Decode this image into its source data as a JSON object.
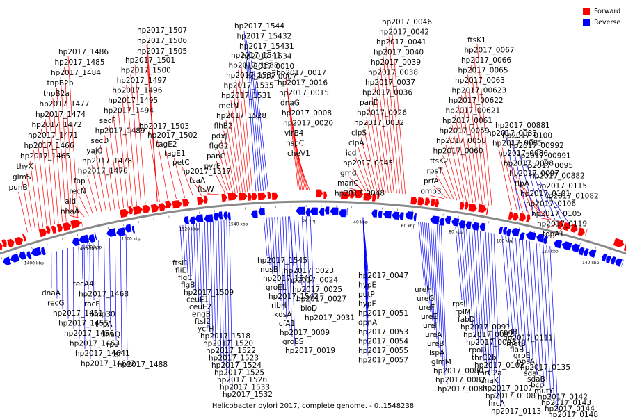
{
  "caption": "Helicobacter pylori 2017, complete genome. - 0..1548238",
  "legend": [
    {
      "label": "Forward",
      "color": "#ff0000"
    },
    {
      "label": "Reverse",
      "color": "#0000ff"
    }
  ],
  "colors": {
    "forward": "#ff0000",
    "reverse": "#0000ff",
    "backbone": "#888888",
    "text": "#000000"
  },
  "ticks": [
    "1400 kbp",
    "1460 kbp",
    "1480 kbp",
    "1500 kbp",
    "1520 kbp",
    "1540 kbp",
    "20 kbp",
    "40 kbp",
    "60 kbp",
    "80 kbp",
    "100 kbp",
    "120 kbp",
    "140 kbp"
  ],
  "forward_labels": [
    "hp2017_1507",
    "hp2017_1506",
    "hp2017_1505",
    "hp2017_1486",
    "hp2017_1485",
    "hp2017_1484",
    "tnpB2b",
    "tnpB2a",
    "hp2017_1477",
    "hp2017_1474",
    "hp2017_1472",
    "hp2017_1471",
    "hp2017_1466",
    "hp2017_1465",
    "thyX",
    "glmS",
    "punB",
    "hp2017_1501",
    "hp2017_1500",
    "hp2017_1497",
    "hp2017_1496",
    "hp2017_1495",
    "hp2017_1494",
    "secF",
    "hp2017_1489",
    "secD",
    "yajC",
    "hp2017_1478",
    "hp2017_1476",
    "fbp",
    "recN",
    "ald",
    "nhaA",
    "hp2017_1503",
    "hp2017_1502",
    "tagE2",
    "tagE1",
    "petC",
    "hp2017_1517",
    "tsaA",
    "ftsW",
    "hp2017_1541",
    "hp2017_1538",
    "hp2017_1537",
    "hp2017_1535",
    "hp2017_1531",
    "metN",
    "hp2017_1528",
    "flhB2",
    "pdxJ",
    "flgG2",
    "panC",
    "pyrF",
    "hp2017_0017",
    "hp2017_0016",
    "hp2017_0015",
    "dnaG",
    "hp2017_0008",
    "hp2017_0020",
    "virB4",
    "nspC",
    "cheV1",
    "hp2017_0046",
    "hp2017_0042",
    "hp2017_0041",
    "hp2017_0040",
    "hp2017_0039",
    "hp2017_0038",
    "hp2017_0037",
    "hp2017_0036",
    "panD",
    "hp2017_0026",
    "hp2017_0032",
    "clpS",
    "clpA",
    "icd",
    "hp2017_0045",
    "gmd",
    "manC",
    "hp2017_0048",
    "ftsK1",
    "hp2017_0067",
    "hp2017_0066",
    "hp2017_0065",
    "hp2017_0063",
    "hp2017_00623",
    "hp2017_00622",
    "hp2017_00621",
    "hp2017_0061",
    "hp2017_0059",
    "hp2017_0058",
    "hp2017_0060",
    "ftsK2",
    "rpsT",
    "prfA",
    "omp3",
    "hp2017_0083",
    "hp2017_0085",
    "hp2017_0086",
    "hp2017_0098",
    "hp2017_0097",
    "tlpA",
    "hp2017_0101",
    "hp2017_0106",
    "hp2017_0105",
    "hp2017_0119",
    "topA1"
  ],
  "reverse_labels": [
    "hp2017_1544",
    "hp2017_15432",
    "hp2017_15431",
    "hp2017_1534",
    "hp2017_0010",
    "hp2017_0007",
    "hp2017_00881",
    "hp2017_0100",
    "hp2017_00992",
    "hp2017_00991",
    "hp2017_0095",
    "hp2017_00882",
    "hp2017_0115",
    "hp2017_01082",
    "dnaA",
    "recG",
    "hp2017_1451",
    "hp2017_1455",
    "hp2017_1456",
    "hp2017_1463",
    "hp2017_14641",
    "hp2017_14642",
    "fecA4",
    "hp2017_1468",
    "rocF",
    "omp30",
    "tnpA",
    "dnaQ",
    "rpe",
    "tsf",
    "hp2017_1488",
    "ftsI1",
    "fliE",
    "flgC",
    "flgB",
    "hp2017_1509",
    "ceuE1",
    "ceuE2",
    "engB",
    "ftsI2",
    "ycfH",
    "hp2017_1518",
    "hp2017_1520",
    "hp2017_1522",
    "hp2017_1523",
    "hp2017_1524",
    "hp2017_1525",
    "hp2017_1526",
    "hp2017_1533",
    "hp2017_1532",
    "hp2017_1545",
    "nusB",
    "hp2017_1540",
    "groEL",
    "hp2017_1542",
    "ribH",
    "kdsA",
    "icfA1",
    "hp2017_0009",
    "groES",
    "hp2017_0019",
    "hp2017_0023",
    "hp2017_0024",
    "hp2017_0025",
    "hp2017_0027",
    "bioD",
    "hp2017_0031",
    "hp2017_0047",
    "hypE",
    "putP",
    "hypF",
    "hp2017_0051",
    "dpnA",
    "hp2017_0053",
    "hp2017_0054",
    "hp2017_0055",
    "hp2017_0057",
    "ureH",
    "ureG",
    "ureF",
    "ureE",
    "ureI",
    "ureA",
    "ureB",
    "lspA",
    "glmM",
    "hp2017_0080",
    "hp2017_0082",
    "hp2017_0087",
    "rpsI",
    "rplM",
    "fabD",
    "hp2017_0091",
    "hp2017_0092",
    "hp2017_0093",
    "rpoD",
    "thrC2b",
    "hp2017_0102",
    "thrC2a",
    "dnaK",
    "hp2017_0107",
    "hp2017_01081",
    "hrcA",
    "hp2017_0113",
    "cpdB",
    "hp2017_0111",
    "metB",
    "flaB",
    "grpE",
    "ppsA",
    "hp2017_0135",
    "sdaC",
    "sdaB",
    "bcp",
    "mutY",
    "hp2017_0142",
    "hp2017_0143",
    "hp2017_0144",
    "hp2017_0148"
  ]
}
